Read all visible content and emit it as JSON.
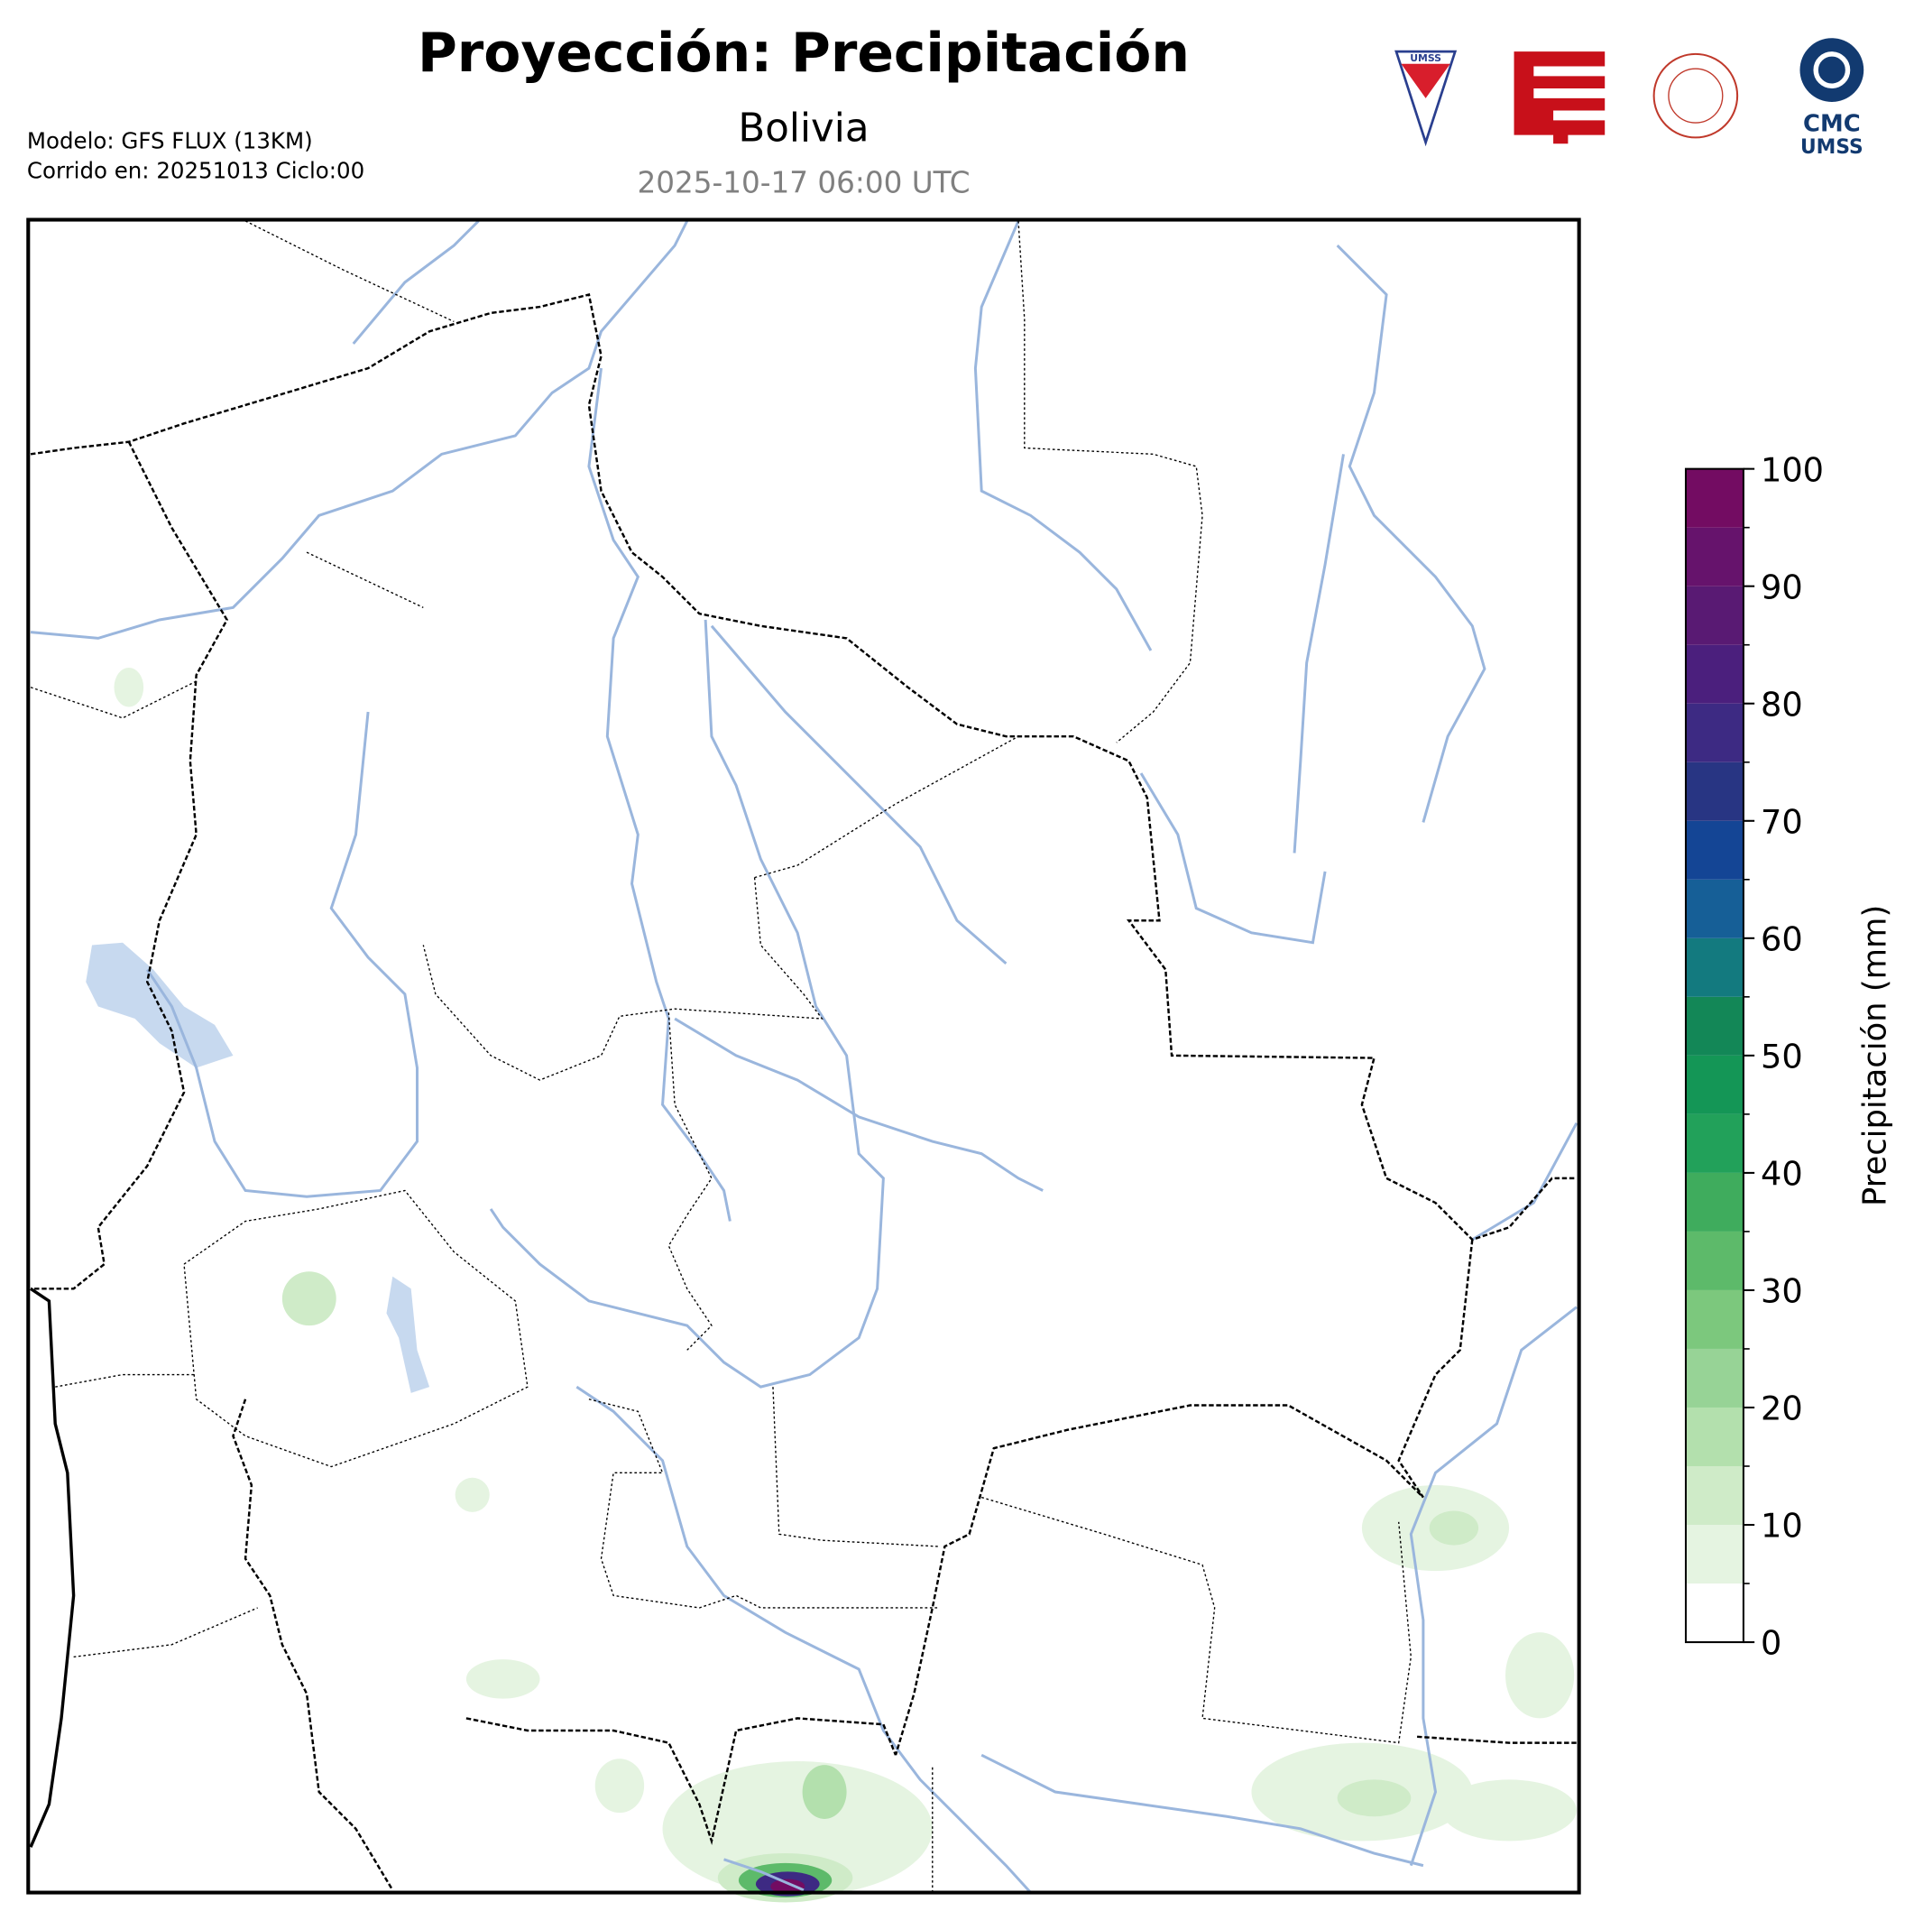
{
  "header": {
    "title": "Proyección: Precipitación",
    "region": "Bolivia",
    "valid_time": "2025-10-17 06:00 UTC"
  },
  "model": {
    "line1": "Modelo: GFS FLUX (13KM)",
    "line2": "Corrido en: 20251013 Ciclo:00"
  },
  "logos": {
    "cmc": "CMC",
    "umss": "UMSS",
    "umss_badge": "UMSS"
  },
  "colorbar": {
    "label": "Precipitación (mm)",
    "lim": [
      0,
      100
    ],
    "levels": [
      0,
      5,
      10,
      15,
      20,
      25,
      30,
      35,
      40,
      45,
      50,
      55,
      60,
      65,
      70,
      75,
      80,
      85,
      90,
      95,
      100
    ],
    "colors": [
      "#ffffff",
      "#e5f4e1",
      "#cfebc8",
      "#b3e0ad",
      "#97d396",
      "#7cc87d",
      "#5dba6a",
      "#3fac5d",
      "#22a15a",
      "#149656",
      "#138757",
      "#137a7f",
      "#165f97",
      "#144595",
      "#283583",
      "#3d2a83",
      "#4b1f7d",
      "#591a73",
      "#66136c",
      "#730c62"
    ],
    "ticks": [
      0,
      10,
      20,
      30,
      40,
      50,
      60,
      70,
      80,
      90,
      100
    ]
  }
}
